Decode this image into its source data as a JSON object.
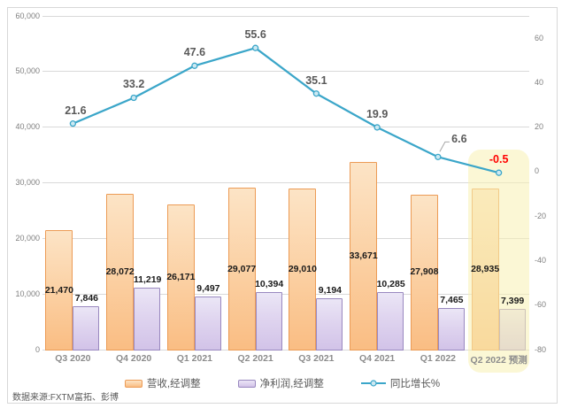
{
  "source": {
    "text": "数据来源:FXTM富拓、彭博"
  },
  "chart_data": {
    "type": "combo",
    "categories": [
      "Q3 2020",
      "Q4 2020",
      "Q1 2021",
      "Q2 2021",
      "Q3 2021",
      "Q4 2021",
      "Q1 2022",
      "Q2 2022 预测"
    ],
    "series": [
      {
        "name": "营收,经调整",
        "type": "bar",
        "axis": "left",
        "values": [
          21470,
          28072,
          26171,
          29077,
          29010,
          33671,
          27908,
          28935
        ]
      },
      {
        "name": "净利润,经调整",
        "type": "bar",
        "axis": "left",
        "values": [
          7846,
          11219,
          9497,
          10394,
          9194,
          10285,
          7465,
          7399
        ]
      },
      {
        "name": "同比增长%",
        "type": "line",
        "axis": "right",
        "values": [
          21.6,
          33.2,
          47.6,
          55.6,
          35.1,
          19.9,
          6.6,
          -0.5
        ]
      }
    ],
    "left_axis": {
      "min": 0,
      "max": 60000,
      "step": 10000,
      "tick_labels": [
        "0",
        "10,000",
        "20,000",
        "30,000",
        "40,000",
        "50,000",
        "60,000"
      ]
    },
    "right_axis": {
      "min": -80,
      "max": 70,
      "step": 20,
      "tick_labels": [
        "60",
        "40",
        "20",
        "0",
        "-20",
        "-40",
        "-60",
        "-80"
      ],
      "tick_values": [
        60,
        40,
        20,
        0,
        -20,
        -40,
        -60,
        -80
      ]
    },
    "gridlines": "horizontal",
    "legend": {
      "position": "bottom",
      "entries": [
        "营收,经调整",
        "净利润,经调整",
        "同比增长%"
      ]
    },
    "highlight": {
      "category": "Q2 2022 预测",
      "index": 7,
      "style": "pale-yellow-rounded",
      "forecast_growth_label": "-0.5",
      "forecast_growth_label_color": "#FF0000"
    }
  },
  "colors": {
    "revenue_fill_top": "#FCE4C6",
    "revenue_fill_bottom": "#FABD83",
    "revenue_border": "#EC9B55",
    "profit_fill_top": "#EBE6F6",
    "profit_fill_bottom": "#D2C3E8",
    "profit_border": "#9988BF",
    "growth_line": "#3BA6C9",
    "growth_marker_fill": "#CDE9F2",
    "growth_label": "#595959",
    "forecast_label": "#FF0000",
    "grid": "#D9D9D9",
    "axis_text": "#808080",
    "category_text": "#8C8C8C",
    "bar_label": "#1A1A1A",
    "highlight_fill": "rgba(247,240,178,0.55)",
    "legend_text": "#595959",
    "source_text": "#595959",
    "frame_border": "#D8D8D8",
    "background": "#FFFFFF"
  }
}
